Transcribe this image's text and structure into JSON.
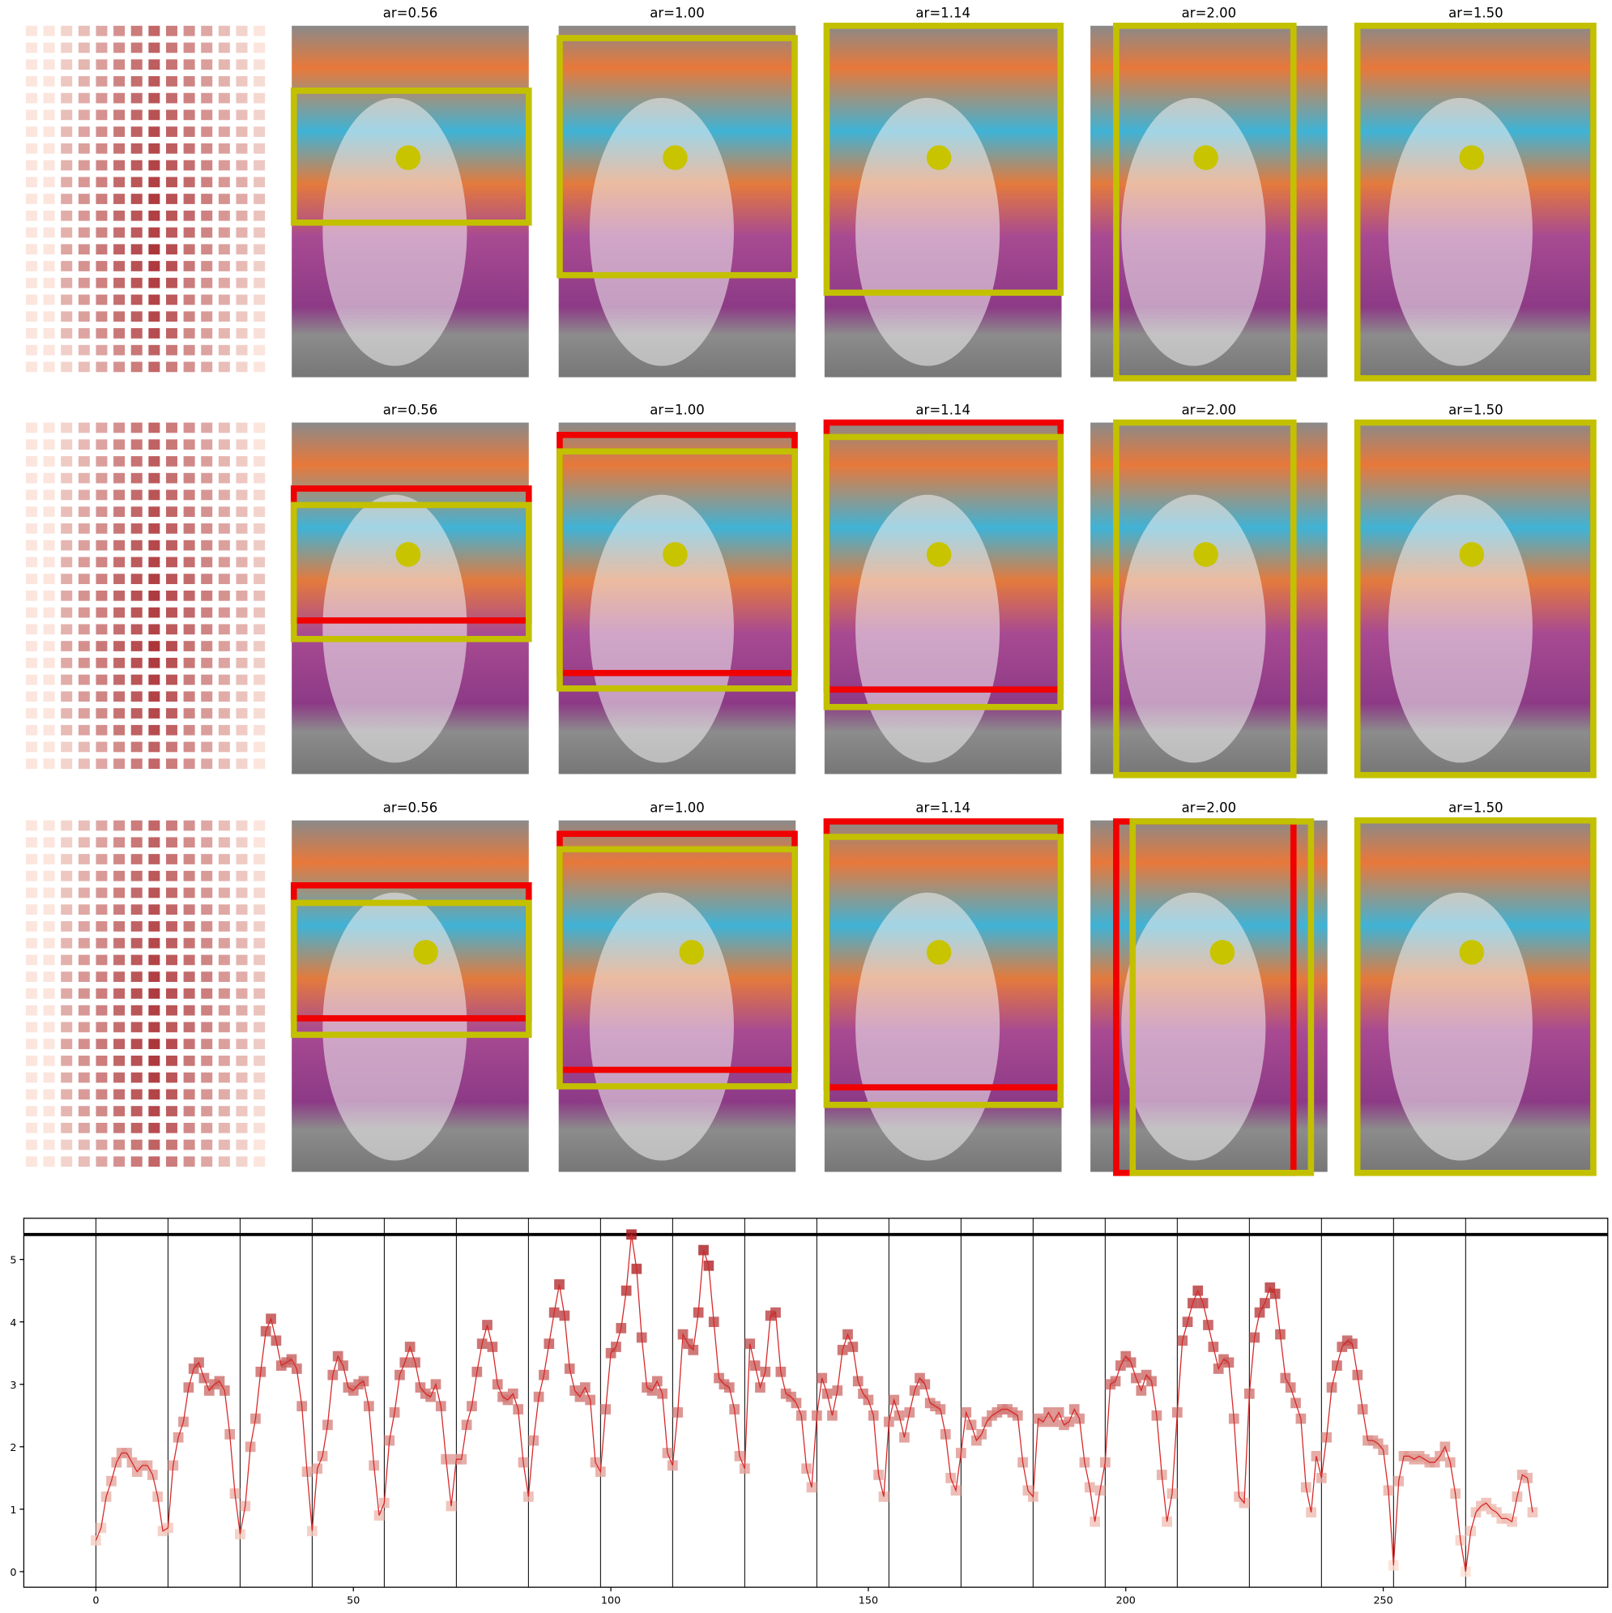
{
  "panel_grid": {
    "rows": [
      {
        "titles": [
          "ar=0.56",
          "ar=1.00",
          "ar=1.14",
          "ar=2.00",
          "ar=1.50"
        ]
      },
      {
        "titles": [
          "ar=0.56",
          "ar=1.00",
          "ar=1.14",
          "ar=2.00",
          "ar=1.50"
        ]
      },
      {
        "titles": [
          "ar=0.56",
          "ar=1.00",
          "ar=1.14",
          "ar=2.00",
          "ar=1.50"
        ]
      }
    ]
  },
  "chart_data": {
    "type": "line",
    "marker": "square",
    "colormap": "Reds",
    "xlim": [
      -14,
      293.6
    ],
    "ylim": [
      -0.25,
      5.66
    ],
    "xticks": [
      0,
      50,
      100,
      150,
      200,
      250
    ],
    "yticks": [
      0,
      1,
      2,
      3,
      4,
      5
    ],
    "vlines": [
      0,
      14,
      28,
      42,
      56,
      70,
      84,
      98,
      112,
      126,
      140,
      154,
      168,
      182,
      196,
      210,
      224,
      238,
      252,
      266
    ],
    "hline": 5.4,
    "x": [
      0,
      1,
      2,
      3,
      4,
      5,
      6,
      7,
      8,
      9,
      10,
      11,
      12,
      13,
      14,
      15,
      16,
      17,
      18,
      19,
      20,
      21,
      22,
      23,
      24,
      25,
      26,
      27,
      28,
      29,
      30,
      31,
      32,
      33,
      34,
      35,
      36,
      37,
      38,
      39,
      40,
      41,
      42,
      43,
      44,
      45,
      46,
      47,
      48,
      49,
      50,
      51,
      52,
      53,
      54,
      55,
      56,
      57,
      58,
      59,
      60,
      61,
      62,
      63,
      64,
      65,
      66,
      67,
      68,
      69,
      70,
      71,
      72,
      73,
      74,
      75,
      76,
      77,
      78,
      79,
      80,
      81,
      82,
      83,
      84,
      85,
      86,
      87,
      88,
      89,
      90,
      91,
      92,
      93,
      94,
      95,
      96,
      97,
      98,
      99,
      100,
      101,
      102,
      103,
      104,
      105,
      106,
      107,
      108,
      109,
      110,
      111,
      112,
      113,
      114,
      115,
      116,
      117,
      118,
      119,
      120,
      121,
      122,
      123,
      124,
      125,
      126,
      127,
      128,
      129,
      130,
      131,
      132,
      133,
      134,
      135,
      136,
      137,
      138,
      139,
      140,
      141,
      142,
      143,
      144,
      145,
      146,
      147,
      148,
      149,
      150,
      151,
      152,
      153,
      154,
      155,
      156,
      157,
      158,
      159,
      160,
      161,
      162,
      163,
      164,
      165,
      166,
      167,
      168,
      169,
      170,
      171,
      172,
      173,
      174,
      175,
      176,
      177,
      178,
      179,
      180,
      181,
      182,
      183,
      184,
      185,
      186,
      187,
      188,
      189,
      190,
      191,
      192,
      193,
      194,
      195,
      196,
      197,
      198,
      199,
      200,
      201,
      202,
      203,
      204,
      205,
      206,
      207,
      208,
      209,
      210,
      211,
      212,
      213,
      214,
      215,
      216,
      217,
      218,
      219,
      220,
      221,
      222,
      223,
      224,
      225,
      226,
      227,
      228,
      229,
      230,
      231,
      232,
      233,
      234,
      235,
      236,
      237,
      238,
      239,
      240,
      241,
      242,
      243,
      244,
      245,
      246,
      247,
      248,
      249,
      250,
      251,
      252,
      253,
      254,
      255,
      256,
      257,
      258,
      259,
      260,
      261,
      262,
      263,
      264,
      265,
      266,
      267,
      268,
      269,
      270,
      271,
      272,
      273,
      274,
      275,
      276,
      277,
      278,
      279
    ],
    "series": [
      {
        "color": "#d62728",
        "values": [
          0.5,
          0.7,
          1.2,
          1.45,
          1.75,
          1.9,
          1.9,
          1.75,
          1.6,
          1.7,
          1.7,
          1.55,
          1.2,
          0.65,
          0.7,
          1.7,
          2.15,
          2.4,
          2.95,
          3.25,
          3.35,
          3.1,
          2.9,
          3.0,
          3.05,
          2.9,
          2.2,
          1.25,
          0.6,
          1.05,
          2.0,
          2.45,
          3.2,
          3.85,
          4.05,
          3.7,
          3.3,
          3.35,
          3.4,
          3.25,
          2.65,
          1.6,
          0.65,
          1.65,
          1.85,
          2.35,
          3.15,
          3.45,
          3.3,
          2.95,
          2.9,
          3.0,
          3.05,
          2.65,
          1.7,
          0.9,
          1.1,
          2.1,
          2.55,
          3.15,
          3.35,
          3.6,
          3.35,
          2.95,
          2.85,
          2.8,
          3.0,
          2.65,
          1.8,
          1.05,
          1.8,
          1.8,
          2.35,
          2.65,
          3.2,
          3.65,
          3.95,
          3.6,
          3.0,
          2.8,
          2.75,
          2.85,
          2.6,
          1.75,
          1.2,
          2.1,
          2.8,
          3.15,
          3.65,
          4.15,
          4.6,
          4.1,
          3.25,
          2.9,
          2.8,
          2.95,
          2.75,
          1.75,
          1.6,
          2.6,
          3.5,
          3.6,
          3.9,
          4.5,
          5.4,
          4.85,
          3.75,
          2.95,
          2.9,
          3.05,
          2.85,
          1.9,
          1.7,
          2.55,
          3.8,
          3.65,
          3.55,
          4.15,
          5.15,
          4.9,
          4.0,
          3.1,
          3.0,
          2.95,
          2.6,
          1.85,
          1.65,
          3.65,
          3.3,
          2.95,
          3.2,
          4.1,
          4.15,
          3.2,
          2.85,
          2.8,
          2.7,
          2.5,
          1.65,
          1.35,
          2.5,
          3.1,
          2.85,
          2.5,
          2.9,
          3.55,
          3.8,
          3.6,
          3.05,
          2.85,
          2.75,
          2.5,
          1.55,
          1.2,
          2.4,
          2.75,
          2.5,
          2.15,
          2.55,
          2.9,
          3.1,
          3.0,
          2.7,
          2.65,
          2.6,
          2.2,
          1.5,
          1.3,
          1.9,
          2.55,
          2.35,
          2.1,
          2.2,
          2.4,
          2.5,
          2.55,
          2.6,
          2.6,
          2.55,
          2.5,
          1.75,
          1.3,
          1.2,
          2.45,
          2.4,
          2.55,
          2.4,
          2.55,
          2.35,
          2.4,
          2.6,
          2.45,
          1.75,
          1.35,
          0.8,
          1.3,
          1.75,
          3.0,
          3.05,
          3.3,
          3.45,
          3.35,
          3.1,
          2.9,
          3.15,
          3.05,
          2.5,
          1.55,
          0.8,
          1.25,
          2.55,
          3.7,
          4.0,
          4.3,
          4.5,
          4.3,
          3.95,
          3.6,
          3.25,
          3.4,
          3.35,
          2.45,
          1.2,
          1.1,
          2.85,
          3.75,
          4.15,
          4.3,
          4.55,
          4.45,
          3.8,
          3.1,
          2.95,
          2.7,
          2.45,
          1.35,
          0.95,
          1.85,
          1.5,
          2.15,
          2.95,
          3.3,
          3.6,
          3.7,
          3.65,
          3.15,
          2.6,
          2.1,
          2.1,
          2.05,
          1.95,
          1.3,
          0.1,
          1.45,
          1.85,
          1.85,
          1.8,
          1.85,
          1.8,
          1.75,
          1.75,
          1.85,
          2.0,
          1.75,
          1.25,
          0.5,
          0.0,
          0.65,
          0.95,
          1.05,
          1.1,
          1.0,
          0.95,
          0.85,
          0.85,
          0.8,
          1.2,
          1.55,
          1.5,
          0.95
        ]
      }
    ]
  }
}
